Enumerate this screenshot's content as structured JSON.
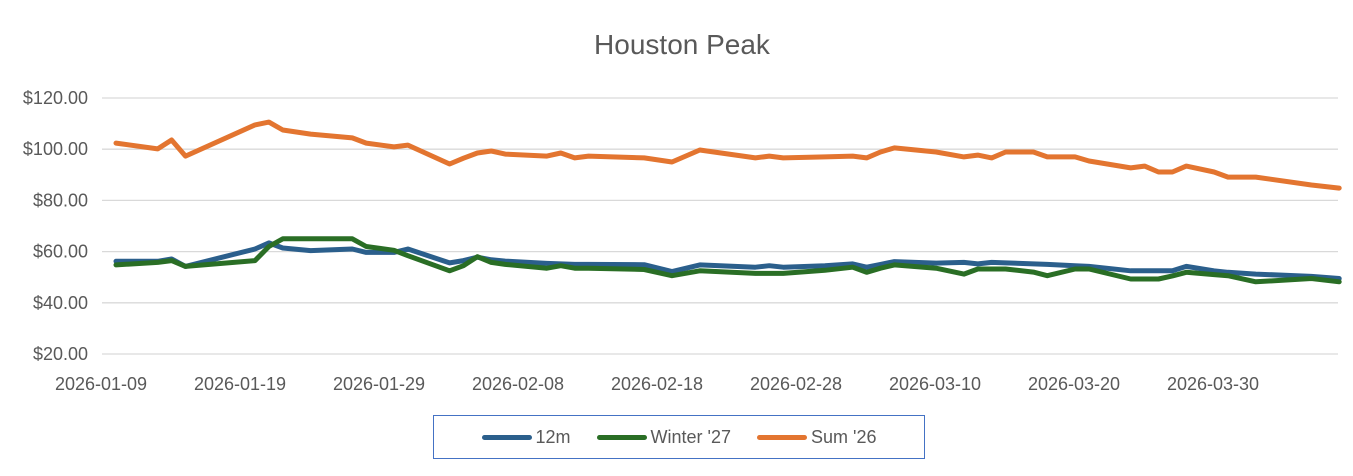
{
  "chart_data": {
    "type": "line",
    "title": "Houston Peak",
    "xlabel": "",
    "ylabel": "",
    "ylim": [
      20,
      120
    ],
    "yticks": [
      20,
      40,
      60,
      80,
      100,
      120
    ],
    "ytick_labels": [
      "$20.00",
      "$40.00",
      "$60.00",
      "$80.00",
      "$100.00",
      "$120.00"
    ],
    "xtick_labels": [
      "2026-01-09",
      "2026-01-19",
      "2026-01-29",
      "2026-02-08",
      "2026-02-18",
      "2026-02-28",
      "2026-03-10",
      "2026-03-20",
      "2026-03-30"
    ],
    "xlim": [
      "2026-01-09",
      "2026-04-07"
    ],
    "grid": true,
    "legend_position": "bottom",
    "x": [
      "2026-01-09",
      "2026-01-12",
      "2026-01-13",
      "2026-01-14",
      "2026-01-19",
      "2026-01-20",
      "2026-01-21",
      "2026-01-23",
      "2026-01-26",
      "2026-01-27",
      "2026-01-29",
      "2026-01-30",
      "2026-02-02",
      "2026-02-03",
      "2026-02-04",
      "2026-02-05",
      "2026-02-06",
      "2026-02-09",
      "2026-02-10",
      "2026-02-11",
      "2026-02-12",
      "2026-02-16",
      "2026-02-18",
      "2026-02-20",
      "2026-02-24",
      "2026-02-25",
      "2026-02-26",
      "2026-03-01",
      "2026-03-03",
      "2026-03-04",
      "2026-03-05",
      "2026-03-06",
      "2026-03-09",
      "2026-03-11",
      "2026-03-12",
      "2026-03-13",
      "2026-03-14",
      "2026-03-16",
      "2026-03-17",
      "2026-03-19",
      "2026-03-20",
      "2026-03-23",
      "2026-03-24",
      "2026-03-25",
      "2026-03-26",
      "2026-03-27",
      "2026-03-29",
      "2026-03-30",
      "2026-04-01",
      "2026-04-05",
      "2026-04-07"
    ],
    "series": [
      {
        "name": "12m",
        "color": "#2B5F8C",
        "values": [
          56.2,
          56.2,
          57.1,
          54.2,
          61,
          63.4,
          61.4,
          60.4,
          61,
          59.7,
          59.7,
          61,
          55.6,
          56.5,
          57.8,
          56.8,
          56.3,
          55.4,
          55.2,
          55.0,
          55.0,
          54.9,
          52.2,
          54.8,
          53.9,
          54.5,
          53.9,
          54.5,
          55.2,
          53.9,
          55.0,
          56.1,
          55.5,
          55.8,
          55.2,
          55.8,
          55.6,
          55.2,
          55.0,
          54.5,
          54.2,
          52.5,
          52.5,
          52.5,
          52.5,
          54.2,
          52.5,
          51.9,
          51.2,
          50.3,
          49.5
        ]
      },
      {
        "name": "Winter '27",
        "color": "#2A6E25",
        "values": [
          54.8,
          55.8,
          56.5,
          54.2,
          56.5,
          62,
          65,
          65,
          65,
          62,
          60.5,
          58.4,
          52.5,
          54.5,
          58,
          55.8,
          55,
          53.5,
          54.5,
          53.5,
          53.5,
          53,
          50.6,
          52.5,
          51.5,
          51.5,
          51.5,
          52.7,
          53.9,
          51.9,
          53.5,
          54.8,
          53.5,
          51.2,
          53.2,
          53.2,
          53.2,
          52,
          50.6,
          53.2,
          53.2,
          49.3,
          49.3,
          49.3,
          50.5,
          51.9,
          51.0,
          50.6,
          48.2,
          49.5,
          48.2
        ]
      },
      {
        "name": "Sum '26",
        "color": "#E37530",
        "values": [
          102.4,
          100.1,
          103.6,
          97.3,
          109.5,
          110.6,
          107.5,
          105.9,
          104.4,
          102.4,
          100.9,
          101.6,
          94.2,
          96.5,
          98.5,
          99.3,
          98.1,
          97.3,
          98.5,
          96.6,
          97.3,
          96.6,
          95.0,
          99.7,
          96.6,
          97.3,
          96.6,
          97.0,
          97.3,
          96.6,
          98.9,
          100.5,
          98.9,
          97.0,
          97.7,
          96.6,
          98.9,
          98.9,
          97.0,
          97.0,
          95.4,
          92.7,
          93.4,
          91.1,
          91.1,
          93.4,
          91.1,
          89.1,
          89.1,
          86.0,
          84.8
        ]
      }
    ]
  }
}
